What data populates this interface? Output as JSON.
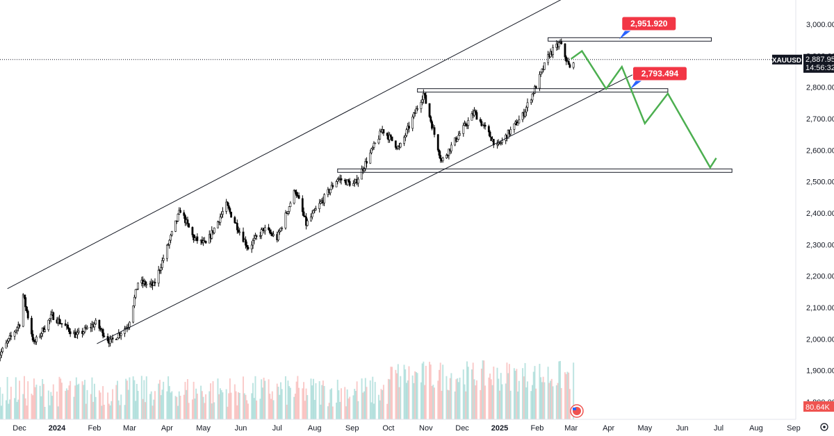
{
  "chart_data": {
    "type": "candlestick",
    "symbol": "XAUUSD",
    "last_price": "2,887.95",
    "countdown": "14:56:32",
    "volume_label": "80.64K",
    "y_ticks": [
      "3,000.00",
      "2,900.00",
      "2,800.00",
      "2,700.00",
      "2,600.00",
      "2,500.00",
      "2,400.00",
      "2,300.00",
      "2,200.00",
      "2,100.00",
      "2,000.00",
      "1,900.00",
      "1,800.00"
    ],
    "y_tick_values": [
      3000,
      2900,
      2800,
      2700,
      2600,
      2500,
      2400,
      2300,
      2200,
      2100,
      2000,
      1900,
      1800
    ],
    "ylim": [
      1780,
      3090
    ],
    "x_ticks": [
      "Dec",
      "2024",
      "Feb",
      "Mar",
      "Apr",
      "May",
      "Jun",
      "Jul",
      "Aug",
      "Sep",
      "Oct",
      "Nov",
      "Dec",
      "2025",
      "Feb",
      "Mar",
      "Apr",
      "May",
      "Jun",
      "Jul",
      "Aug",
      "Sep"
    ],
    "x_tick_dates": [
      "2023-12-01",
      "2024-01-01",
      "2024-02-01",
      "2024-03-01",
      "2024-04-01",
      "2024-05-01",
      "2024-06-01",
      "2024-07-01",
      "2024-08-01",
      "2024-09-01",
      "2024-10-01",
      "2024-11-01",
      "2024-12-01",
      "2025-01-01",
      "2025-02-01",
      "2025-03-01",
      "2025-04-01",
      "2025-05-01",
      "2025-06-01",
      "2025-07-01",
      "2025-08-01",
      "2025-09-01"
    ],
    "bold_x_ticks": [
      "2024",
      "2025"
    ],
    "annotations": [
      {
        "label": "2,951.920",
        "price": 2951.92
      },
      {
        "label": "2,793.494",
        "price": 2793.494
      }
    ],
    "horizontal_levels": [
      {
        "price": 2951.92,
        "from": "2025-02-10",
        "to": "2025-06-25"
      },
      {
        "price": 2790,
        "from": "2024-10-25",
        "to": "2025-05-20"
      },
      {
        "price": 2535,
        "from": "2024-08-20",
        "to": "2025-07-12"
      }
    ],
    "channel_upper": [
      {
        "date": "2023-11-21",
        "price": 2160
      },
      {
        "date": "2025-03-21",
        "price": 3135
      }
    ],
    "channel_lower": [
      {
        "date": "2024-02-03",
        "price": 1985
      },
      {
        "date": "2025-04-21",
        "price": 2840
      }
    ],
    "projected_path": [
      {
        "date": "2025-03-01",
        "price": 2890
      },
      {
        "date": "2025-03-10",
        "price": 2915
      },
      {
        "date": "2025-03-30",
        "price": 2795
      },
      {
        "date": "2025-04-12",
        "price": 2865
      },
      {
        "date": "2025-05-01",
        "price": 2685
      },
      {
        "date": "2025-05-20",
        "price": 2780
      },
      {
        "date": "2025-06-24",
        "price": 2545
      },
      {
        "date": "2025-06-29",
        "price": 2575
      }
    ],
    "price_anchors": [
      {
        "date": "2023-11-13",
        "price": 1940
      },
      {
        "date": "2023-12-01",
        "price": 2050
      },
      {
        "date": "2023-12-04",
        "price": 2140
      },
      {
        "date": "2023-12-13",
        "price": 1985
      },
      {
        "date": "2023-12-28",
        "price": 2075
      },
      {
        "date": "2024-01-17",
        "price": 2010
      },
      {
        "date": "2024-02-02",
        "price": 2050
      },
      {
        "date": "2024-02-14",
        "price": 1990
      },
      {
        "date": "2024-02-29",
        "price": 2045
      },
      {
        "date": "2024-03-08",
        "price": 2180
      },
      {
        "date": "2024-03-21",
        "price": 2170
      },
      {
        "date": "2024-04-12",
        "price": 2410
      },
      {
        "date": "2024-04-23",
        "price": 2320
      },
      {
        "date": "2024-05-03",
        "price": 2300
      },
      {
        "date": "2024-05-20",
        "price": 2425
      },
      {
        "date": "2024-06-07",
        "price": 2290
      },
      {
        "date": "2024-06-20",
        "price": 2350
      },
      {
        "date": "2024-07-01",
        "price": 2320
      },
      {
        "date": "2024-07-16",
        "price": 2475
      },
      {
        "date": "2024-07-25",
        "price": 2365
      },
      {
        "date": "2024-08-20",
        "price": 2510
      },
      {
        "date": "2024-09-03",
        "price": 2490
      },
      {
        "date": "2024-09-26",
        "price": 2665
      },
      {
        "date": "2024-10-10",
        "price": 2605
      },
      {
        "date": "2024-10-30",
        "price": 2780
      },
      {
        "date": "2024-11-14",
        "price": 2565
      },
      {
        "date": "2024-11-25",
        "price": 2630
      },
      {
        "date": "2024-12-11",
        "price": 2720
      },
      {
        "date": "2024-12-30",
        "price": 2610
      },
      {
        "date": "2025-01-20",
        "price": 2710
      },
      {
        "date": "2025-01-30",
        "price": 2795
      },
      {
        "date": "2025-02-11",
        "price": 2905
      },
      {
        "date": "2025-02-20",
        "price": 2940
      },
      {
        "date": "2025-02-28",
        "price": 2858
      },
      {
        "date": "2025-03-03",
        "price": 2887.95
      }
    ],
    "colors": {
      "up": "#26a69a",
      "down": "#ef5350",
      "candle": "#000000",
      "projection": "#4caf50",
      "tag_bg": "#f23645",
      "tag_pointer": "#2962ff",
      "axis_tag_bg": "#131722"
    }
  }
}
